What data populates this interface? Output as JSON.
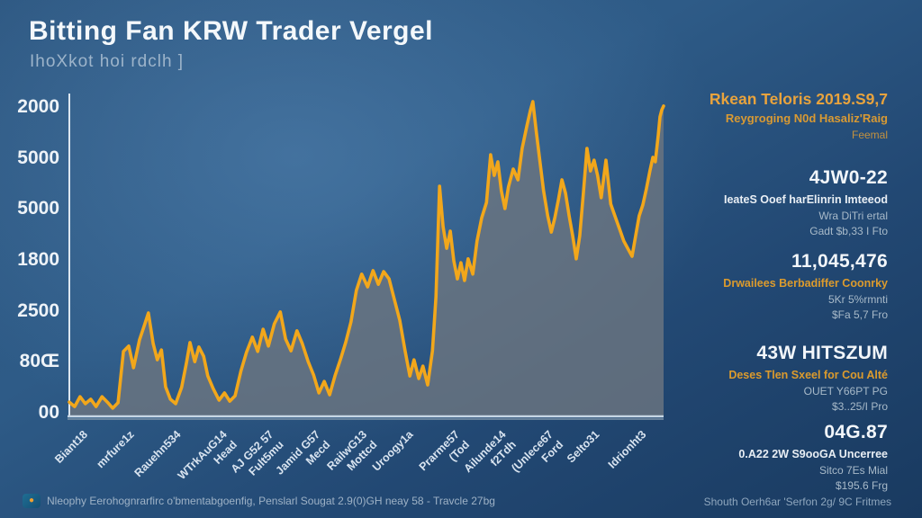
{
  "header": {
    "title": "Bitting Fan KRW Trader Vergel",
    "subtitle": "IhoXkot hoi rdclh ]"
  },
  "chart_data": {
    "type": "area",
    "title": "Bitting Fan KRW Trader Vergel",
    "xlabel": "",
    "ylabel": "",
    "grid": false,
    "legend": false,
    "ylim": [
      0,
      100
    ],
    "y_tick_labels": [
      "2000",
      "5000",
      "5000",
      "1800",
      "2500",
      "80Œ",
      "00"
    ],
    "x_tick_labels": [
      "Biant18",
      "mrfure1z",
      "Rauehn534",
      "WTrkAuG14\nHead",
      "AJ G52 57\nFult5mu",
      "Jamid G57\nMecd",
      "RailwG13\nMottcd",
      "Uroogy1a",
      "Prarme57\n(Tod",
      "Ailunde14\nf2Tdh",
      "(Unlece67\nFord",
      "Selto31",
      "Idrionht3"
    ],
    "series": [
      {
        "name": "trader-line",
        "color": "#F2A71B",
        "points": [
          [
            0,
            4.2
          ],
          [
            0.9,
            2.8
          ],
          [
            1.8,
            5.9
          ],
          [
            2.7,
            3.7
          ],
          [
            3.6,
            5.1
          ],
          [
            4.5,
            2.8
          ],
          [
            5.5,
            5.9
          ],
          [
            6.4,
            4.2
          ],
          [
            7.3,
            2.3
          ],
          [
            8.2,
            4.0
          ],
          [
            9.1,
            20.1
          ],
          [
            10,
            21.8
          ],
          [
            10.8,
            15
          ],
          [
            11.8,
            23.7
          ],
          [
            12.6,
            28.2
          ],
          [
            13.3,
            32.2
          ],
          [
            14.1,
            22.6
          ],
          [
            14.8,
            17.5
          ],
          [
            15.5,
            20.6
          ],
          [
            16.2,
            9
          ],
          [
            17,
            5.1
          ],
          [
            17.9,
            3.7
          ],
          [
            18.9,
            8.8
          ],
          [
            19.7,
            16.4
          ],
          [
            20.3,
            22.9
          ],
          [
            21.1,
            16.9
          ],
          [
            21.8,
            21.5
          ],
          [
            22.6,
            18.6
          ],
          [
            23.3,
            12.4
          ],
          [
            24.2,
            8.5
          ],
          [
            25.2,
            4.8
          ],
          [
            26.1,
            7.1
          ],
          [
            27,
            4.5
          ],
          [
            27.9,
            6.2
          ],
          [
            28.9,
            14.1
          ],
          [
            29.8,
            19.8
          ],
          [
            30.8,
            24.6
          ],
          [
            31.7,
            20.1
          ],
          [
            32.6,
            27.1
          ],
          [
            33.5,
            21.8
          ],
          [
            34.5,
            28.8
          ],
          [
            35.5,
            32.5
          ],
          [
            36.4,
            24
          ],
          [
            37.3,
            20.3
          ],
          [
            38.3,
            26.6
          ],
          [
            39.2,
            22.6
          ],
          [
            40.2,
            16.9
          ],
          [
            41.1,
            12.7
          ],
          [
            42,
            7.1
          ],
          [
            42.9,
            10.7
          ],
          [
            43.8,
            6.5
          ],
          [
            44.7,
            12.4
          ],
          [
            45.6,
            17.5
          ],
          [
            46.5,
            22.9
          ],
          [
            47.4,
            29.4
          ],
          [
            48.3,
            39.3
          ],
          [
            49.2,
            44.4
          ],
          [
            50.2,
            40.4
          ],
          [
            51.1,
            45.5
          ],
          [
            52,
            41.2
          ],
          [
            52.9,
            45.2
          ],
          [
            53.8,
            42.9
          ],
          [
            54.7,
            36.4
          ],
          [
            55.6,
            29.9
          ],
          [
            56.5,
            20.3
          ],
          [
            57.3,
            12.4
          ],
          [
            58,
            17.5
          ],
          [
            58.8,
            11.6
          ],
          [
            59.5,
            15.5
          ],
          [
            60.3,
            9.6
          ],
          [
            61.1,
            20.3
          ],
          [
            61.7,
            37.3
          ],
          [
            62.3,
            72
          ],
          [
            62.9,
            59.3
          ],
          [
            63.5,
            52.5
          ],
          [
            64.1,
            57.9
          ],
          [
            64.7,
            48.6
          ],
          [
            65.3,
            42.9
          ],
          [
            65.9,
            48
          ],
          [
            66.5,
            42.4
          ],
          [
            67.1,
            49.2
          ],
          [
            67.9,
            44.4
          ],
          [
            68.6,
            54.8
          ],
          [
            69.4,
            62.1
          ],
          [
            70.2,
            66.9
          ],
          [
            70.9,
            81.9
          ],
          [
            71.5,
            75.4
          ],
          [
            72.1,
            79.7
          ],
          [
            72.7,
            70.6
          ],
          [
            73.3,
            65
          ],
          [
            73.9,
            71.8
          ],
          [
            74.7,
            77.4
          ],
          [
            75.5,
            74
          ],
          [
            76.2,
            83.9
          ],
          [
            77,
            91
          ],
          [
            77.6,
            96
          ],
          [
            78,
            98.6
          ],
          [
            78.6,
            88.7
          ],
          [
            79.2,
            79.7
          ],
          [
            79.8,
            70.6
          ],
          [
            80.5,
            62.7
          ],
          [
            81.1,
            57.6
          ],
          [
            81.7,
            62.1
          ],
          [
            82.3,
            67.8
          ],
          [
            82.9,
            74
          ],
          [
            83.5,
            69.8
          ],
          [
            84.1,
            62.7
          ],
          [
            84.7,
            56.5
          ],
          [
            85.3,
            49.2
          ],
          [
            85.9,
            56.5
          ],
          [
            86.5,
            69.8
          ],
          [
            87.1,
            83.9
          ],
          [
            87.7,
            76.8
          ],
          [
            88.3,
            80.2
          ],
          [
            88.9,
            75.4
          ],
          [
            89.5,
            68.4
          ],
          [
            90.3,
            80.2
          ],
          [
            91.1,
            66.4
          ],
          [
            91.8,
            62.7
          ],
          [
            92.6,
            58.5
          ],
          [
            93.3,
            54.8
          ],
          [
            94.1,
            52
          ],
          [
            94.7,
            50
          ],
          [
            95.3,
            56.5
          ],
          [
            95.9,
            62.7
          ],
          [
            96.5,
            66.1
          ],
          [
            97.1,
            71.2
          ],
          [
            97.7,
            76.8
          ],
          [
            98.2,
            81.1
          ],
          [
            98.6,
            79.7
          ],
          [
            99.1,
            88.1
          ],
          [
            99.4,
            93.8
          ],
          [
            99.7,
            96
          ],
          [
            100,
            97.2
          ]
        ]
      }
    ]
  },
  "sidebar": {
    "blocks": [
      {
        "heading": "Rkean Teloris 2019.S9,7",
        "heading_style": "orange",
        "lines": [
          {
            "text": "Reygroging N0d Hasaliz'Raig",
            "style": "orange-mixed"
          },
          {
            "text": "Feemal",
            "style": "orange-dim"
          }
        ]
      },
      {
        "heading": "4JW0-22",
        "heading_style": "white",
        "lines": [
          {
            "text": "IeateS Ooef harElinrin Imteeod",
            "style": "white-small"
          },
          {
            "text": "Wra DiTri ertal",
            "style": "gray"
          },
          {
            "text": "Gadt $b,33 I Fto",
            "style": "gray"
          }
        ]
      },
      {
        "heading": "11,045,476",
        "heading_style": "white",
        "lines": [
          {
            "text": "Drwailees Berbadiffer Coonrky",
            "style": "orange-small"
          },
          {
            "text": "5Kr 5%rmnti",
            "style": "gray"
          },
          {
            "text": "$Fa 5,7 Fro",
            "style": "gray"
          }
        ]
      },
      {
        "heading": "43W HITSZUM",
        "heading_style": "white",
        "lines": [
          {
            "text": "Deses Tlen Sxeel for Cou Alté",
            "style": "orange-small"
          },
          {
            "text": "OUET Y66PT PG",
            "style": "gray"
          },
          {
            "text": "$3..25/I Pro",
            "style": "gray"
          }
        ]
      },
      {
        "heading": "04G.87",
        "heading_style": "white",
        "lines": [
          {
            "text": "0.A22 2W S9ooGA Uncerree",
            "style": "white-small"
          },
          {
            "text": "Sitco 7Es Mial",
            "style": "gray"
          },
          {
            "text": "$195.6 Frg",
            "style": "gray"
          }
        ]
      }
    ]
  },
  "footer": {
    "icon": "coin-badge-icon",
    "icon_glyph": "●",
    "left_text": "Nleophy Eerohognrarfirc o'bmentabgoenfig, Penslarl Sougat 2.9(0)GH neay 58 - Travcle 27bg",
    "right_text": "Shouth Oerh6ar 'Serfon 2g/ 9C Fritmes"
  },
  "colors": {
    "accent_orange": "#F2A71B",
    "background_blue": "#2B547F",
    "area_fill": "#6B7580",
    "text_light": "#F2F6FA",
    "text_gray": "#A8BAC9"
  }
}
